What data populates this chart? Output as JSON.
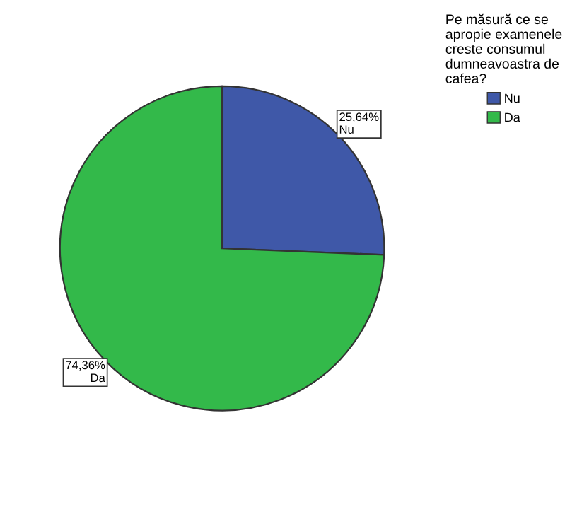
{
  "chart_data": {
    "type": "pie",
    "legend_title": "Pe măsură ce se\napropie examenele\ncreste consumul\ndumneavoastra de\ncafea?",
    "categories": [
      "Nu",
      "Da"
    ],
    "values": [
      25.64,
      74.36
    ],
    "colors": [
      "#3f58a8",
      "#33b94a"
    ],
    "value_labels": [
      "25,64%\nNu",
      "74,36%\nDa"
    ],
    "legend": "top right"
  }
}
